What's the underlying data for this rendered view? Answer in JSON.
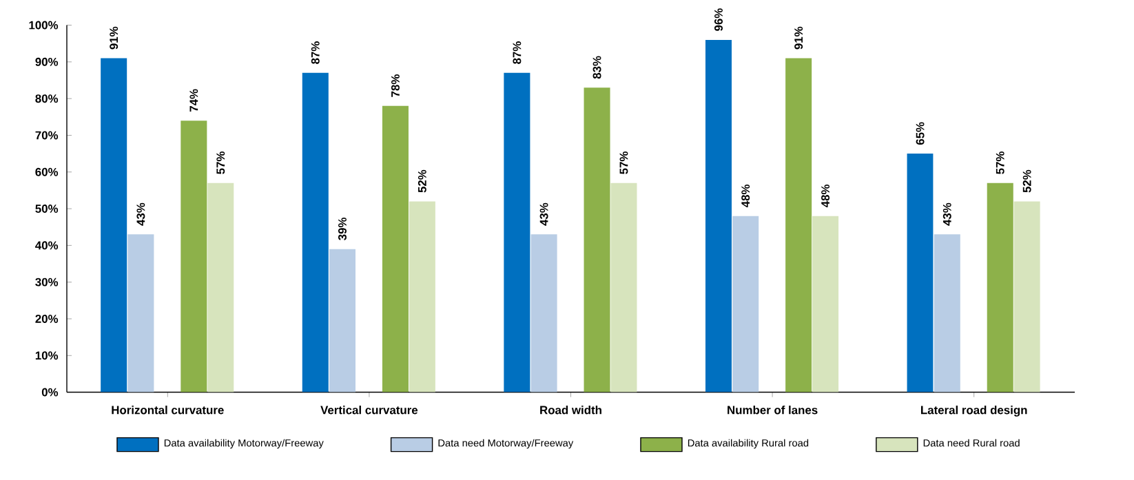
{
  "chart_data": {
    "type": "bar",
    "categories": [
      "Horizontal curvature",
      "Vertical curvature",
      "Road width",
      "Number of lanes",
      "Lateral road design"
    ],
    "series": [
      {
        "name": "Data availability Motorway/Freeway",
        "color": "#0070c0",
        "values": [
          91,
          87,
          87,
          96,
          65
        ],
        "value_labels": [
          "91%",
          "87%",
          "87%",
          "96%",
          "65%"
        ]
      },
      {
        "name": "Data need Motorway/Freeway",
        "color": "#b9cde5",
        "values": [
          43,
          39,
          43,
          48,
          43
        ],
        "value_labels": [
          "43%",
          "39%",
          "43%",
          "48%",
          "43%"
        ]
      },
      {
        "name": "Data availability Rural road",
        "color": "#8db14a",
        "values": [
          74,
          78,
          83,
          91,
          57
        ],
        "value_labels": [
          "74%",
          "78%",
          "83%",
          "91%",
          "57%"
        ]
      },
      {
        "name": "Data need Rural road",
        "color": "#d7e4bd",
        "values": [
          57,
          52,
          57,
          48,
          52
        ],
        "value_labels": [
          "57%",
          "52%",
          "57%",
          "48%",
          "52%"
        ]
      }
    ],
    "ylim": [
      0,
      100
    ],
    "yticks": [
      {
        "value": 0,
        "label": "0%"
      },
      {
        "value": 10,
        "label": "10%"
      },
      {
        "value": 20,
        "label": "20%"
      },
      {
        "value": 30,
        "label": "30%"
      },
      {
        "value": 40,
        "label": "40%"
      },
      {
        "value": 50,
        "label": "50%"
      },
      {
        "value": 60,
        "label": "60%"
      },
      {
        "value": 70,
        "label": "70%"
      },
      {
        "value": 80,
        "label": "80%"
      },
      {
        "value": 90,
        "label": "90%"
      },
      {
        "value": 100,
        "label": "100%"
      }
    ],
    "legend": "bottom"
  }
}
